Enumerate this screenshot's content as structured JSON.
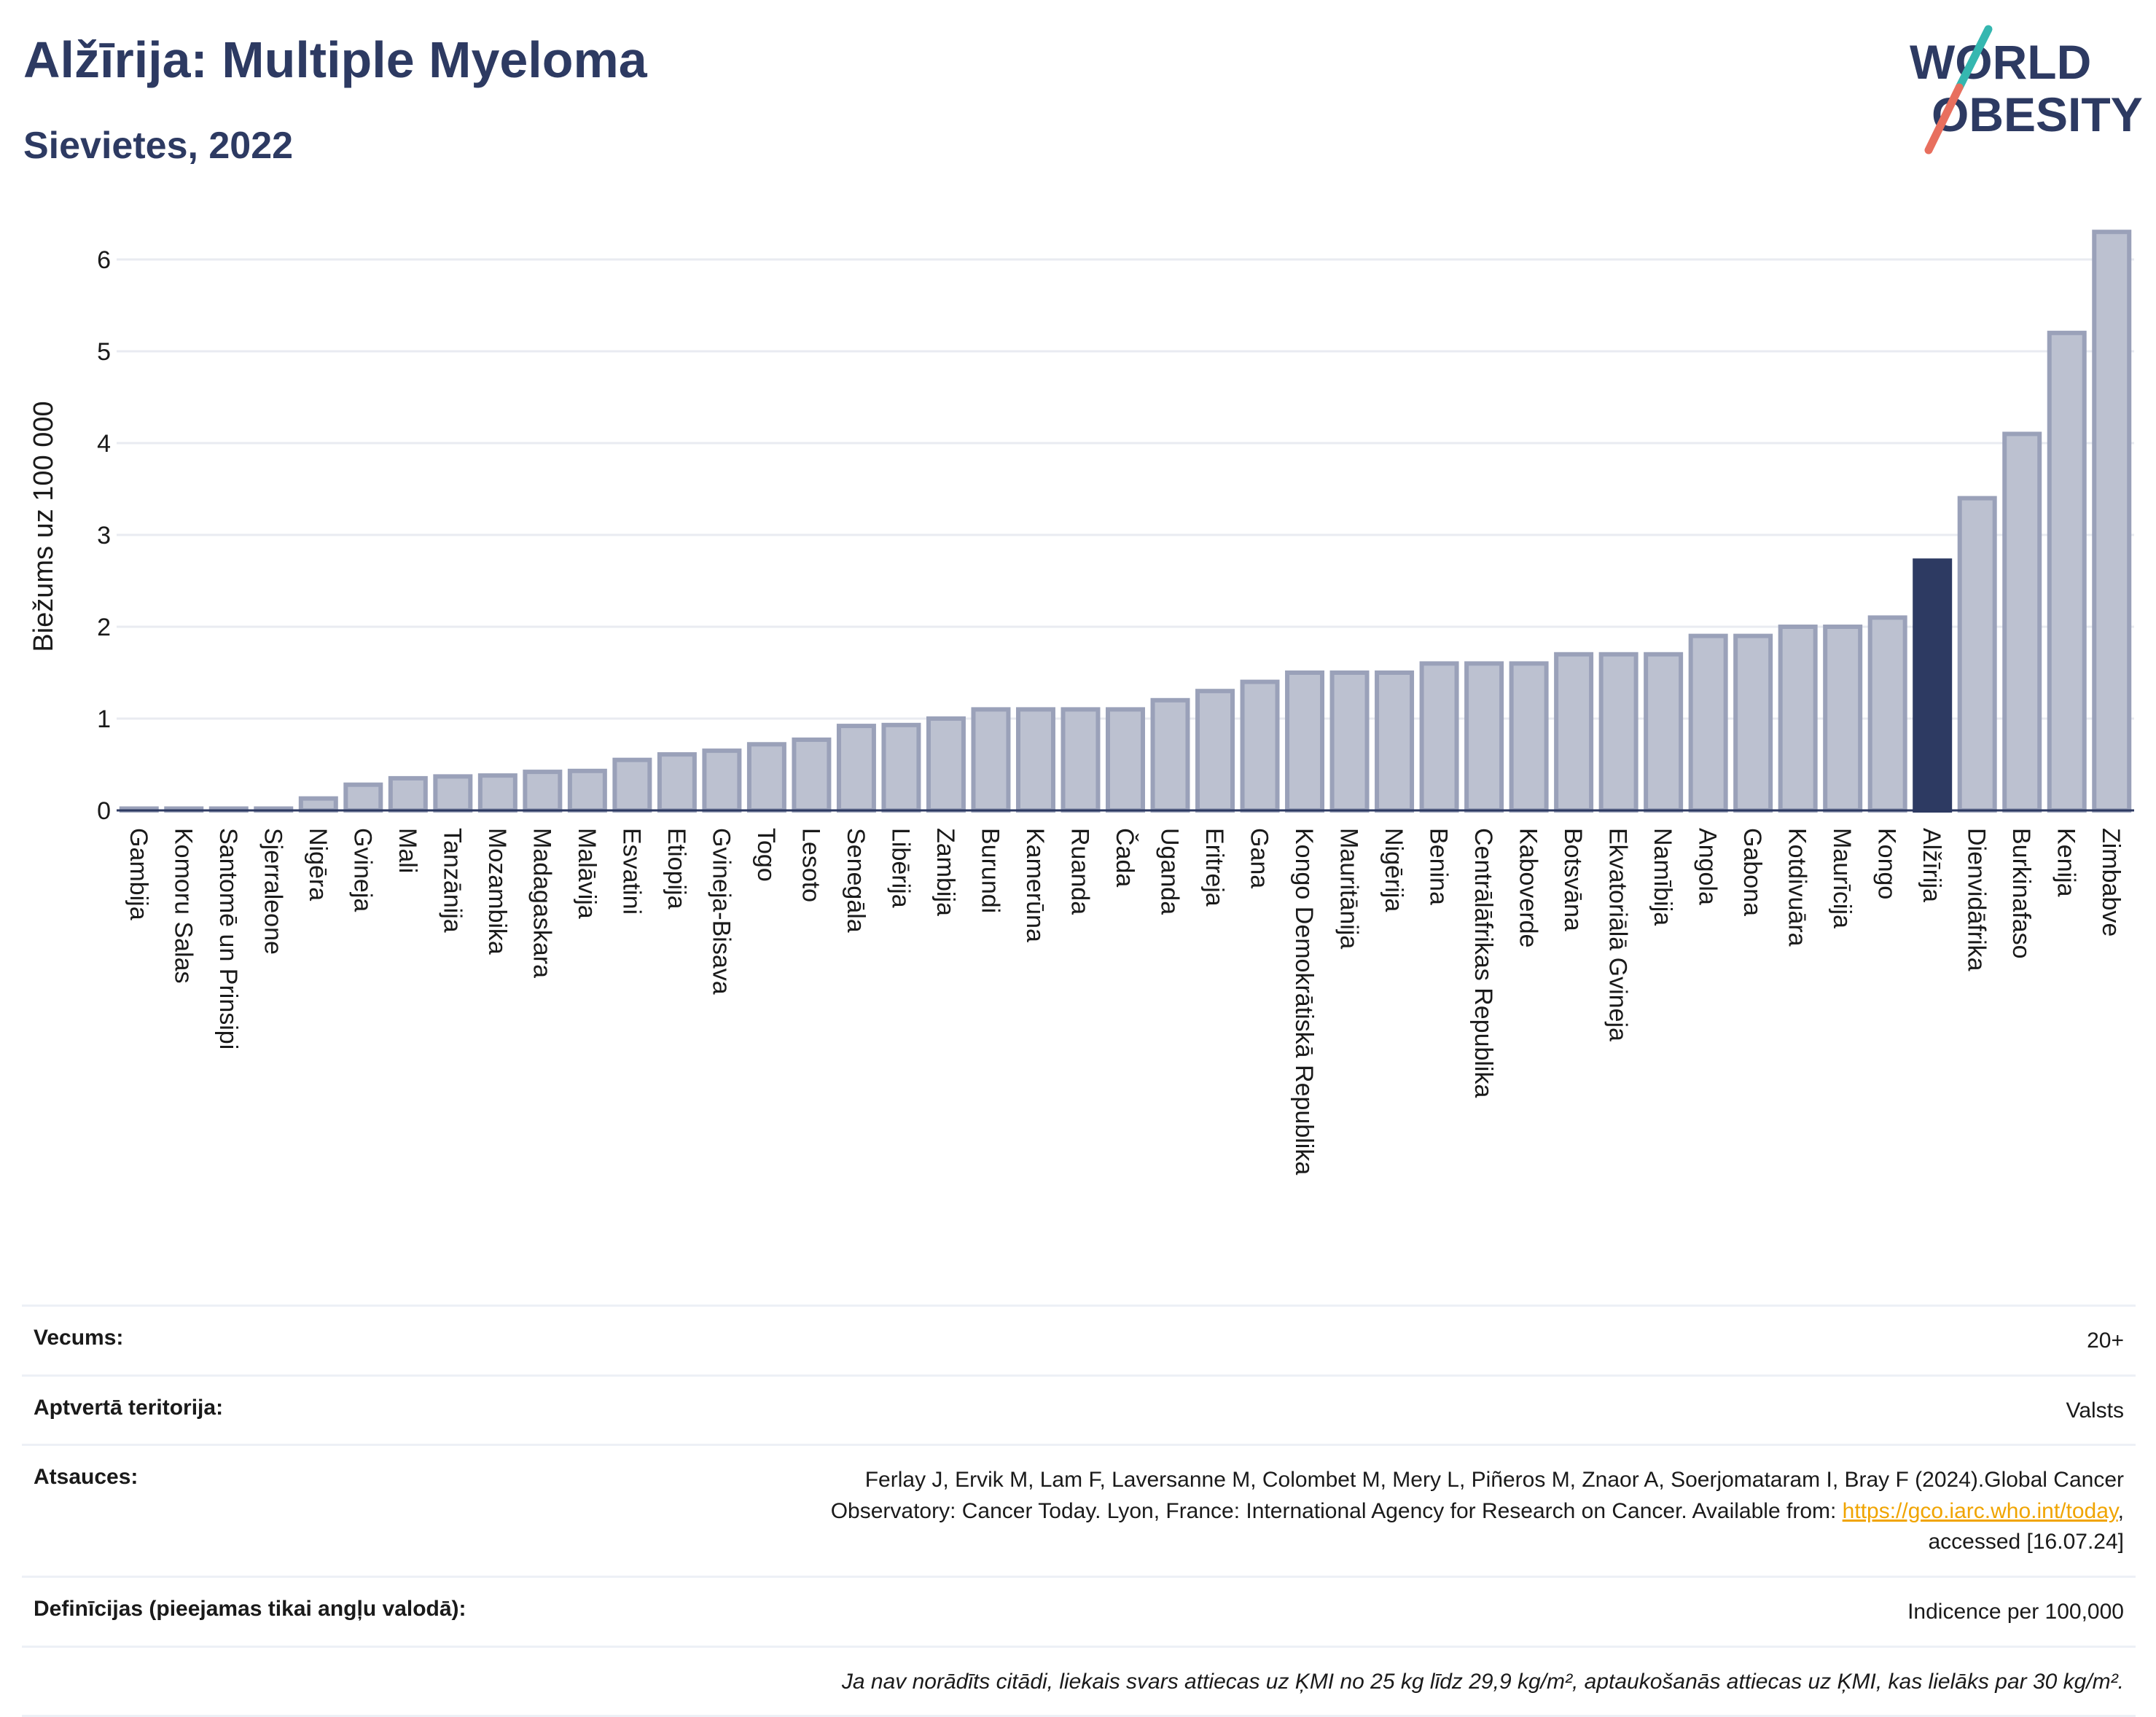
{
  "title": "Alžīrija: Multiple Myeloma",
  "subtitle": "Sievietes, 2022",
  "logo": {
    "line1": "WORLD",
    "line2": "OBESITY"
  },
  "chart_data": {
    "type": "bar",
    "title": "Alžīrija: Multiple Myeloma",
    "ylabel": "Biežums uz 100 000",
    "xlabel": "",
    "ylim": [
      0,
      6.5
    ],
    "yticks": [
      0,
      1,
      2,
      3,
      4,
      5,
      6
    ],
    "grid": true,
    "highlight": "Alžīrija",
    "colors": {
      "bar": "#bcc1d0",
      "bar_border": "#9aa1b9",
      "highlight": "#2d3a62"
    },
    "categories": [
      "Gambija",
      "Komoru Salas",
      "Santomē un Prinsipi",
      "Sjerraleone",
      "Nigēra",
      "Gvineja",
      "Mali",
      "Tanzānija",
      "Mozambika",
      "Madagaskara",
      "Malāvija",
      "Esvatini",
      "Etiopija",
      "Gvineja-Bisava",
      "Togo",
      "Lesoto",
      "Senegāla",
      "Libērija",
      "Zambija",
      "Burundi",
      "Kamerūna",
      "Ruanda",
      "Čada",
      "Uganda",
      "Eritreja",
      "Gana",
      "Kongo Demokrātiskā Republika",
      "Mauritānija",
      "Nigērija",
      "Benina",
      "Centrālāfrikas Republika",
      "Kaboverde",
      "Botsvāna",
      "Ekvatoriālā Gvineja",
      "Namībija",
      "Angola",
      "Gabona",
      "Kotdivuāra",
      "Maurīcija",
      "Kongo",
      "Alžīrija",
      "Dienvidāfrika",
      "Burkinafaso",
      "Kenija",
      "Zimbabve"
    ],
    "values": [
      0.02,
      0.02,
      0.02,
      0.02,
      0.13,
      0.28,
      0.35,
      0.37,
      0.38,
      0.42,
      0.43,
      0.55,
      0.61,
      0.65,
      0.72,
      0.77,
      0.92,
      0.93,
      1.0,
      1.1,
      1.1,
      1.1,
      1.1,
      1.2,
      1.3,
      1.4,
      1.5,
      1.5,
      1.5,
      1.6,
      1.6,
      1.6,
      1.7,
      1.7,
      1.7,
      1.9,
      1.9,
      2.0,
      2.0,
      2.1,
      2.72,
      3.4,
      4.1,
      5.2,
      6.3
    ]
  },
  "meta": {
    "age": {
      "label": "Vecums:",
      "value": "20+"
    },
    "territory": {
      "label": "Aptvertā teritorija:",
      "value": "Valsts"
    },
    "references": {
      "label": "Atsauces:",
      "line1": "Ferlay J, Ervik M, Lam F, Laversanne M, Colombet M, Mery L, Piñeros M, Znaor A, Soerjomataram I, Bray F (2024).Global Cancer",
      "line2": "Observatory: Cancer Today. Lyon, France: International Agency for Research on Cancer. Available from: ",
      "link": "https://gco.iarc.who.int/today",
      "line2_end": ",",
      "line3": "accessed [16.07.24]"
    },
    "definitions": {
      "label": "Definīcijas (pieejamas tikai angļu valodā):",
      "value": "Indicence per 100,000"
    },
    "note": "Ja nav norādīts citādi, liekais svars attiecas uz ĶMI no 25 kg līdz 29,9 kg/m², aptaukošanās attiecas uz ĶMI, kas lielāks par 30 kg/m²."
  }
}
